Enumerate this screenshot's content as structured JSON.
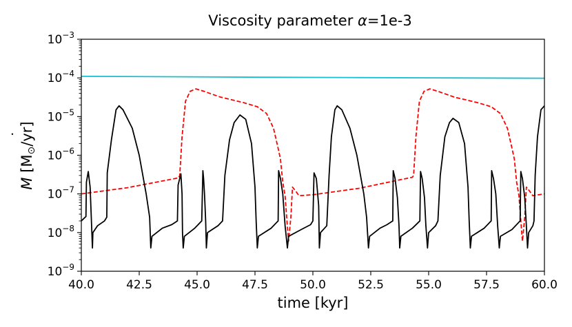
{
  "chart_data": {
    "type": "line",
    "title_prefix": "Viscosity parameter ",
    "title_symbol": "α",
    "title_suffix": "=1e-3",
    "xlabel": "time [kyr]",
    "ylabel_main": "M",
    "ylabel_dot": "˙",
    "ylabel_rest": " [M",
    "ylabel_sub": "⊙",
    "ylabel_unit": "/yr]",
    "xlim": [
      40.0,
      60.0
    ],
    "ylim_log10": [
      -9,
      -3
    ],
    "yscale": "log",
    "grid": false,
    "x_ticks": [
      40.0,
      42.5,
      45.0,
      47.5,
      50.0,
      52.5,
      55.0,
      57.5,
      60.0
    ],
    "x_tick_labels": [
      "40.0",
      "42.5",
      "45.0",
      "47.5",
      "50.0",
      "52.5",
      "55.0",
      "57.5",
      "60.0"
    ],
    "y_ticks_exp": [
      -9,
      -8,
      -7,
      -6,
      -5,
      -4,
      -3
    ],
    "y_tick_base": "10",
    "y_tick_exponents": [
      "−9",
      "−8",
      "−7",
      "−6",
      "−5",
      "−4",
      "−3"
    ],
    "series": [
      {
        "name": "cyan",
        "color": "#17becf",
        "style": "solid",
        "points": [
          [
            40.0,
            0.00011
          ],
          [
            44.0,
            0.000107
          ],
          [
            48.0,
            0.000104
          ],
          [
            52.0,
            0.000102
          ],
          [
            56.0,
            0.0001
          ],
          [
            60.0,
            9.8e-05
          ]
        ]
      },
      {
        "name": "red-dashed",
        "color": "#ff0000",
        "style": "dashed",
        "points": [
          [
            40.0,
            1e-07
          ],
          [
            42.0,
            1.45e-07
          ],
          [
            44.2,
            2.6e-07
          ],
          [
            44.25,
            3e-07
          ],
          [
            44.35,
            3e-06
          ],
          [
            44.5,
            2.5e-05
          ],
          [
            44.7,
            4.5e-05
          ],
          [
            44.95,
            5.2e-05
          ],
          [
            45.3,
            4.5e-05
          ],
          [
            46.0,
            3.2e-05
          ],
          [
            47.0,
            2.3e-05
          ],
          [
            47.6,
            1.8e-05
          ],
          [
            48.0,
            1.2e-05
          ],
          [
            48.3,
            5e-06
          ],
          [
            48.5,
            1.5e-06
          ],
          [
            48.6,
            8e-07
          ],
          [
            48.7,
            2e-07
          ],
          [
            48.8,
            9e-08
          ],
          [
            48.88,
            2e-08
          ],
          [
            48.95,
            6e-09
          ],
          [
            49.05,
            2.5e-08
          ],
          [
            49.12,
            1.5e-07
          ],
          [
            49.25,
            1.2e-07
          ],
          [
            49.4,
            9e-08
          ],
          [
            50.0,
            9.5e-08
          ],
          [
            52.0,
            1.4e-07
          ],
          [
            54.3,
            2.7e-07
          ],
          [
            54.35,
            3e-07
          ],
          [
            54.45,
            3e-06
          ],
          [
            54.6,
            2.5e-05
          ],
          [
            54.8,
            4.5e-05
          ],
          [
            55.05,
            5.2e-05
          ],
          [
            55.4,
            4.5e-05
          ],
          [
            56.1,
            3.2e-05
          ],
          [
            57.1,
            2.3e-05
          ],
          [
            57.7,
            1.8e-05
          ],
          [
            58.1,
            1.2e-05
          ],
          [
            58.4,
            5e-06
          ],
          [
            58.6,
            1.5e-06
          ],
          [
            58.7,
            8e-07
          ],
          [
            58.8,
            2e-07
          ],
          [
            58.9,
            9e-08
          ],
          [
            58.98,
            2e-08
          ],
          [
            59.05,
            6e-09
          ],
          [
            59.15,
            2.5e-08
          ],
          [
            59.22,
            1.5e-07
          ],
          [
            59.35,
            1.2e-07
          ],
          [
            59.5,
            9e-08
          ],
          [
            60.0,
            1e-07
          ]
        ]
      },
      {
        "name": "black",
        "color": "#000000",
        "style": "solid",
        "points": [
          [
            40.0,
            2e-08
          ],
          [
            40.2,
            2.6e-08
          ],
          [
            40.22,
            2e-07
          ],
          [
            40.3,
            3.8e-07
          ],
          [
            40.38,
            1.5e-07
          ],
          [
            40.43,
            2.5e-08
          ],
          [
            40.48,
            4e-09
          ],
          [
            40.5,
            1e-08
          ],
          [
            40.7,
            1.5e-08
          ],
          [
            41.0,
            2e-08
          ],
          [
            41.1,
            2.5e-08
          ],
          [
            41.12,
            3.5e-07
          ],
          [
            41.3,
            2.5e-06
          ],
          [
            41.5,
            1.5e-05
          ],
          [
            41.63,
            1.9e-05
          ],
          [
            41.8,
            1.5e-05
          ],
          [
            42.2,
            5e-06
          ],
          [
            42.5,
            1e-06
          ],
          [
            42.8,
            1e-07
          ],
          [
            42.95,
            2.5e-08
          ],
          [
            43.0,
            4e-09
          ],
          [
            43.05,
            8e-09
          ],
          [
            43.5,
            1.3e-08
          ],
          [
            43.9,
            1.6e-08
          ],
          [
            44.15,
            2e-08
          ],
          [
            44.18,
            1.7e-07
          ],
          [
            44.3,
            3.3e-07
          ],
          [
            44.35,
            1e-07
          ],
          [
            44.37,
            1e-08
          ],
          [
            44.4,
            4e-09
          ],
          [
            44.45,
            8e-09
          ],
          [
            44.9,
            1.3e-08
          ],
          [
            45.2,
            2e-08
          ],
          [
            45.25,
            4e-07
          ],
          [
            45.28,
            2.5e-07
          ],
          [
            45.32,
            1e-07
          ],
          [
            45.37,
            2e-08
          ],
          [
            45.4,
            4e-09
          ],
          [
            45.45,
            1e-08
          ],
          [
            45.9,
            1.5e-08
          ],
          [
            46.1,
            2e-08
          ],
          [
            46.2,
            3e-07
          ],
          [
            46.4,
            2.5e-06
          ],
          [
            46.6,
            7e-06
          ],
          [
            46.85,
            1.1e-05
          ],
          [
            47.1,
            8.5e-06
          ],
          [
            47.35,
            2e-06
          ],
          [
            47.5,
            1.5e-07
          ],
          [
            47.55,
            2e-08
          ],
          [
            47.6,
            4e-09
          ],
          [
            47.65,
            8e-09
          ],
          [
            48.2,
            1.3e-08
          ],
          [
            48.5,
            2e-08
          ],
          [
            48.52,
            4e-07
          ],
          [
            48.6,
            2.5e-07
          ],
          [
            48.7,
            1e-07
          ],
          [
            48.8,
            1.5e-08
          ],
          [
            48.9,
            4e-09
          ],
          [
            48.95,
            8e-09
          ],
          [
            49.5,
            1.2e-08
          ],
          [
            49.9,
            1.6e-08
          ],
          [
            50.0,
            2e-08
          ],
          [
            50.05,
            3.5e-07
          ],
          [
            50.15,
            2.5e-07
          ],
          [
            50.25,
            5e-08
          ],
          [
            50.28,
            4e-09
          ],
          [
            50.33,
            1e-08
          ],
          [
            50.6,
            1.5e-08
          ],
          [
            50.7,
            3e-07
          ],
          [
            50.8,
            3e-06
          ],
          [
            50.95,
            1.5e-05
          ],
          [
            51.05,
            1.9e-05
          ],
          [
            51.25,
            1.5e-05
          ],
          [
            51.6,
            5e-06
          ],
          [
            51.9,
            1e-06
          ],
          [
            52.2,
            1e-07
          ],
          [
            52.32,
            2.5e-08
          ],
          [
            52.4,
            4e-09
          ],
          [
            52.45,
            8e-09
          ],
          [
            52.9,
            1.3e-08
          ],
          [
            53.2,
            1.6e-08
          ],
          [
            53.45,
            2e-08
          ],
          [
            53.47,
            4e-07
          ],
          [
            53.55,
            2.5e-07
          ],
          [
            53.65,
            8e-08
          ],
          [
            53.72,
            1.5e-08
          ],
          [
            53.75,
            4e-09
          ],
          [
            53.8,
            8e-09
          ],
          [
            54.3,
            1.3e-08
          ],
          [
            54.62,
            2e-08
          ],
          [
            54.65,
            3.8e-07
          ],
          [
            54.72,
            2.5e-07
          ],
          [
            54.82,
            8e-08
          ],
          [
            54.88,
            1.5e-08
          ],
          [
            54.95,
            4e-09
          ],
          [
            55.0,
            1e-08
          ],
          [
            55.3,
            1.5e-08
          ],
          [
            55.4,
            2e-08
          ],
          [
            55.5,
            3e-07
          ],
          [
            55.7,
            3e-06
          ],
          [
            55.9,
            7e-06
          ],
          [
            56.05,
            9e-06
          ],
          [
            56.3,
            7e-06
          ],
          [
            56.55,
            2e-06
          ],
          [
            56.7,
            1.5e-07
          ],
          [
            56.75,
            2e-08
          ],
          [
            56.8,
            4e-09
          ],
          [
            56.85,
            8e-09
          ],
          [
            57.4,
            1.3e-08
          ],
          [
            57.7,
            2e-08
          ],
          [
            57.72,
            4e-07
          ],
          [
            57.8,
            2.5e-07
          ],
          [
            57.9,
            1e-07
          ],
          [
            57.98,
            1.5e-08
          ],
          [
            58.05,
            4e-09
          ],
          [
            58.1,
            8e-09
          ],
          [
            58.6,
            1.2e-08
          ],
          [
            58.95,
            2e-08
          ],
          [
            58.98,
            3.8e-07
          ],
          [
            59.05,
            2.5e-07
          ],
          [
            59.15,
            8e-08
          ],
          [
            59.22,
            1.5e-08
          ],
          [
            59.27,
            4e-09
          ],
          [
            59.32,
            1e-08
          ],
          [
            59.5,
            1.5e-08
          ],
          [
            59.55,
            2e-08
          ],
          [
            59.6,
            3e-07
          ],
          [
            59.7,
            3e-06
          ],
          [
            59.85,
            1.5e-05
          ],
          [
            60.0,
            1.9e-05
          ]
        ]
      }
    ]
  }
}
